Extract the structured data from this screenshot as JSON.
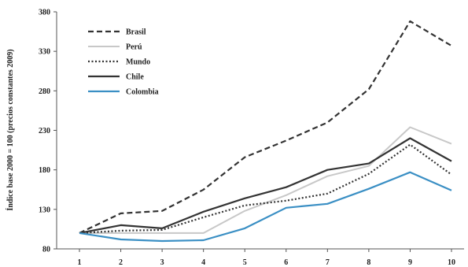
{
  "chart_data": {
    "type": "line",
    "title": "",
    "xlabel": "",
    "ylabel": "Índice base 2000 = 100 (precios constantes 2009)",
    "x": [
      1,
      2,
      3,
      4,
      5,
      6,
      7,
      8,
      9,
      10
    ],
    "ylim": [
      80,
      380
    ],
    "yticks": [
      80,
      130,
      180,
      230,
      280,
      330,
      380
    ],
    "grid": false,
    "legend_position": "top-left",
    "series": [
      {
        "name": "Brasil",
        "color": "#333333",
        "style": "dashed",
        "values": [
          100,
          125,
          128,
          155,
          196,
          217,
          240,
          282,
          368,
          337
        ]
      },
      {
        "name": "Perú",
        "color": "#c8c8c8",
        "style": "solid",
        "values": [
          100,
          100,
          100,
          100,
          128,
          148,
          172,
          185,
          234,
          213
        ]
      },
      {
        "name": "Mundo",
        "color": "#333333",
        "style": "dotted",
        "values": [
          100,
          103,
          104,
          120,
          135,
          141,
          150,
          175,
          212,
          174
        ]
      },
      {
        "name": "Chile",
        "color": "#333333",
        "style": "solid",
        "values": [
          100,
          110,
          106,
          127,
          144,
          158,
          180,
          188,
          220,
          191
        ]
      },
      {
        "name": "Colombia",
        "color": "#3a8fc4",
        "style": "solid",
        "values": [
          100,
          92,
          90,
          91,
          106,
          132,
          137,
          156,
          177,
          154
        ]
      }
    ]
  }
}
